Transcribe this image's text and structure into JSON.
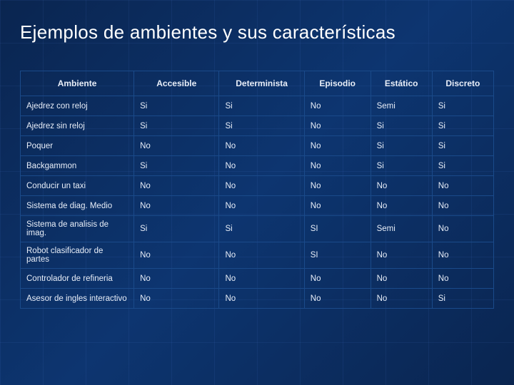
{
  "title": "Ejemplos de ambientes y sus características",
  "table": {
    "columns": [
      "Ambiente",
      "Accesible",
      "Determinista",
      "Episodio",
      "Estático",
      "Discreto"
    ],
    "rows": [
      [
        "Ajedrez con reloj",
        "Si",
        "Si",
        "No",
        "Semi",
        "Si"
      ],
      [
        "Ajedrez sin reloj",
        "Si",
        "Si",
        "No",
        "Si",
        "Si"
      ],
      [
        "Poquer",
        "No",
        "No",
        "No",
        "Si",
        "Si"
      ],
      [
        "Backgammon",
        "Si",
        "No",
        "No",
        "Si",
        "Si"
      ],
      [
        "Conducir un taxi",
        "No",
        "No",
        "No",
        "No",
        "No"
      ],
      [
        "Sistema de diag. Medio",
        "No",
        "No",
        "No",
        "No",
        "No"
      ],
      [
        "Sistema de analisis de imag.",
        "Si",
        "Si",
        "SI",
        "Semi",
        "No"
      ],
      [
        "Robot clasificador de partes",
        "No",
        "No",
        "SI",
        "No",
        "No"
      ],
      [
        "Controlador de refineria",
        "No",
        "No",
        "No",
        "No",
        "No"
      ],
      [
        "Asesor de ingles interactivo",
        "No",
        "No",
        "No",
        "No",
        "Si"
      ]
    ]
  },
  "colors": {
    "background_start": "#0a2550",
    "background_end": "#0d3570",
    "grid_line": "rgba(100,150,255,0.08)",
    "border": "#1a4a8a",
    "text": "#e8eef8",
    "title": "#ffffff"
  }
}
